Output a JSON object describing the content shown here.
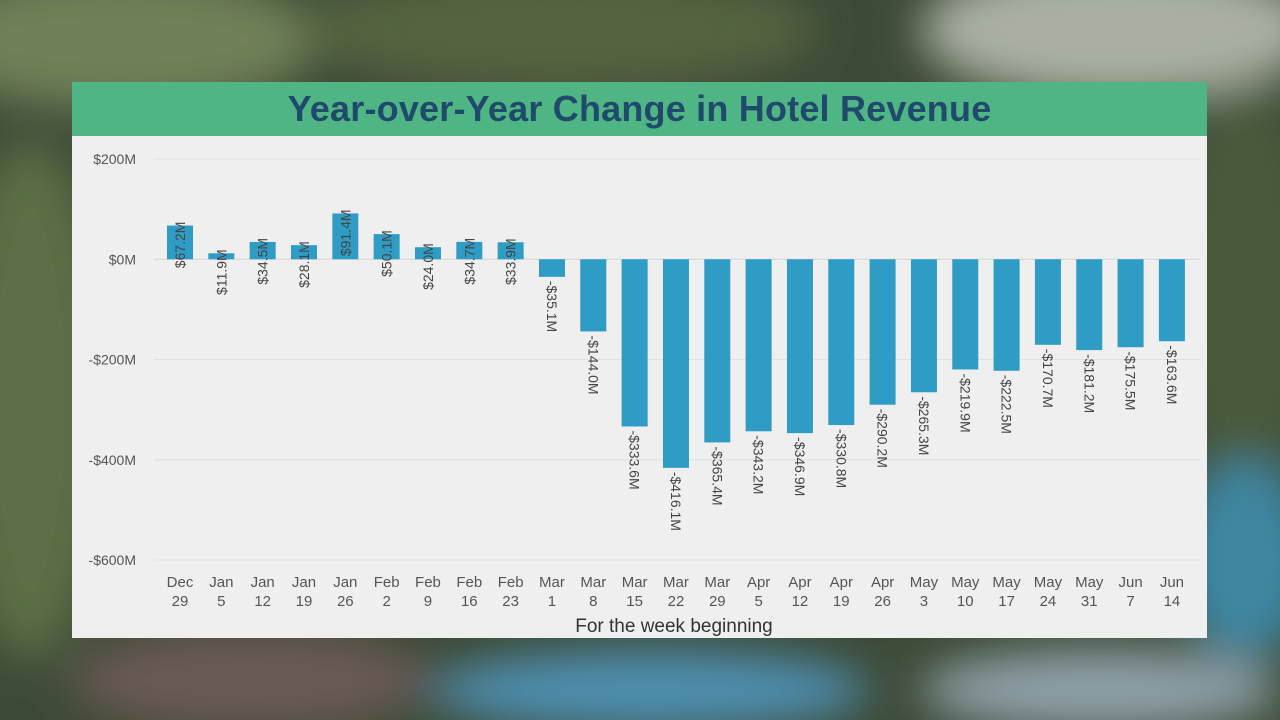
{
  "chart_data": {
    "type": "bar",
    "title": "Year-over-Year Change in Hotel Revenue",
    "xlabel": "For the week beginning",
    "ylabel": "",
    "ylim": [
      -600,
      200
    ],
    "yticks": [
      200,
      0,
      -200,
      -400,
      -600
    ],
    "ytick_labels": [
      "$200M",
      "$0M",
      "-$200M",
      "-$400M",
      "-$600M"
    ],
    "grid": true,
    "bar_color": "#2e9cc4",
    "categories": [
      [
        "Dec",
        "29"
      ],
      [
        "Jan",
        "5"
      ],
      [
        "Jan",
        "12"
      ],
      [
        "Jan",
        "19"
      ],
      [
        "Jan",
        "26"
      ],
      [
        "Feb",
        "2"
      ],
      [
        "Feb",
        "9"
      ],
      [
        "Feb",
        "16"
      ],
      [
        "Feb",
        "23"
      ],
      [
        "Mar",
        "1"
      ],
      [
        "Mar",
        "8"
      ],
      [
        "Mar",
        "15"
      ],
      [
        "Mar",
        "22"
      ],
      [
        "Mar",
        "29"
      ],
      [
        "Apr",
        "5"
      ],
      [
        "Apr",
        "12"
      ],
      [
        "Apr",
        "19"
      ],
      [
        "Apr",
        "26"
      ],
      [
        "May",
        "3"
      ],
      [
        "May",
        "10"
      ],
      [
        "May",
        "17"
      ],
      [
        "May",
        "24"
      ],
      [
        "May",
        "31"
      ],
      [
        "Jun",
        "7"
      ],
      [
        "Jun",
        "14"
      ]
    ],
    "values": [
      67.2,
      11.9,
      34.5,
      28.1,
      91.4,
      50.1,
      24.0,
      34.7,
      33.9,
      -35.1,
      -144.0,
      -333.6,
      -416.1,
      -365.4,
      -343.2,
      -346.9,
      -330.8,
      -290.2,
      -265.3,
      -219.9,
      -222.5,
      -170.7,
      -181.2,
      -175.5,
      -163.6
    ],
    "data_labels": [
      "$67.2M",
      "$11.9M",
      "$34.5M",
      "$28.1M",
      "$91.4M",
      "$50.1M",
      "$24.0M",
      "$34.7M",
      "$33.9M",
      "-$35.1M",
      "-$144.0M",
      "-$333.6M",
      "-$416.1M",
      "-$365.4M",
      "-$343.2M",
      "-$346.9M",
      "-$330.8M",
      "-$290.2M",
      "-$265.3M",
      "-$219.9M",
      "-$222.5M",
      "-$170.7M",
      "-$181.2M",
      "-$175.5M",
      "-$163.6M"
    ]
  }
}
